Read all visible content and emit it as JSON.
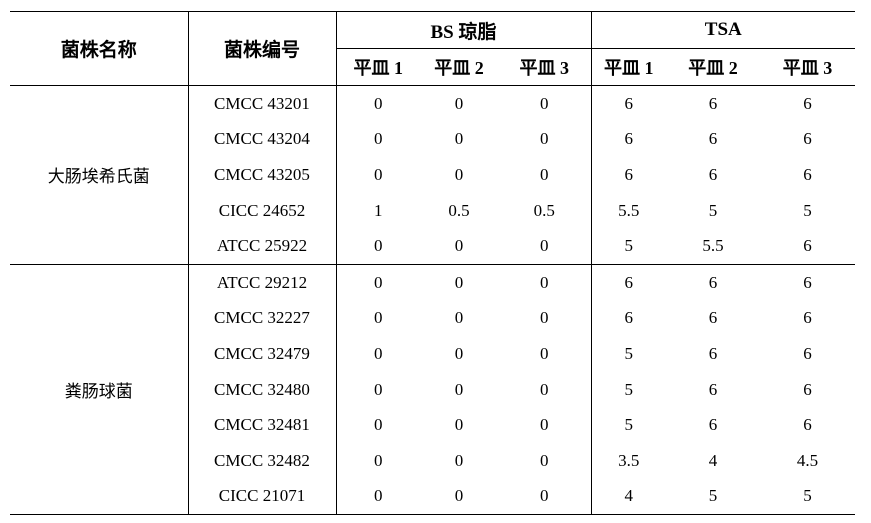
{
  "header": {
    "strain_name": "菌株名称",
    "strain_id": "菌株编号",
    "group_bs": "BS 琼脂",
    "group_tsa": "TSA",
    "plates": [
      "平皿 1",
      "平皿 2",
      "平皿 3",
      "平皿 1",
      "平皿 2",
      "平皿 3"
    ]
  },
  "groups": [
    {
      "name": "大肠埃希氏菌",
      "rows": [
        {
          "id": "CMCC 43201",
          "values": [
            "0",
            "0",
            "0",
            "6",
            "6",
            "6"
          ]
        },
        {
          "id": "CMCC 43204",
          "values": [
            "0",
            "0",
            "0",
            "6",
            "6",
            "6"
          ]
        },
        {
          "id": "CMCC 43205",
          "values": [
            "0",
            "0",
            "0",
            "6",
            "6",
            "6"
          ]
        },
        {
          "id": "CICC 24652",
          "values": [
            "1",
            "0.5",
            "0.5",
            "5.5",
            "5",
            "5"
          ]
        },
        {
          "id": "ATCC 25922",
          "values": [
            "0",
            "0",
            "0",
            "5",
            "5.5",
            "6"
          ]
        }
      ]
    },
    {
      "name": "粪肠球菌",
      "rows": [
        {
          "id": "ATCC 29212",
          "values": [
            "0",
            "0",
            "0",
            "6",
            "6",
            "6"
          ]
        },
        {
          "id": "CMCC 32227",
          "values": [
            "0",
            "0",
            "0",
            "6",
            "6",
            "6"
          ]
        },
        {
          "id": "CMCC 32479",
          "values": [
            "0",
            "0",
            "0",
            "5",
            "6",
            "6"
          ]
        },
        {
          "id": "CMCC 32480",
          "values": [
            "0",
            "0",
            "0",
            "5",
            "6",
            "6"
          ]
        },
        {
          "id": "CMCC 32481",
          "values": [
            "0",
            "0",
            "0",
            "5",
            "6",
            "6"
          ]
        },
        {
          "id": "CMCC 32482",
          "values": [
            "0",
            "0",
            "0",
            "3.5",
            "4",
            "4.5"
          ]
        },
        {
          "id": "CICC 21071",
          "values": [
            "0",
            "0",
            "0",
            "4",
            "5",
            "5"
          ]
        }
      ]
    }
  ]
}
